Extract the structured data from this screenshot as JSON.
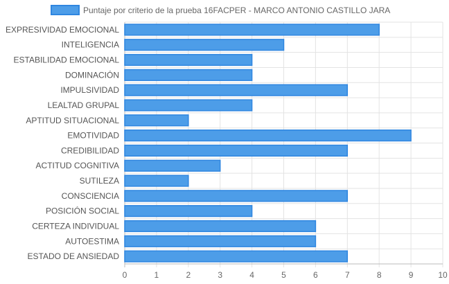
{
  "chart_data": {
    "type": "bar",
    "orientation": "horizontal",
    "legend_position": "top",
    "grid": true,
    "series": [
      {
        "name": "Puntaje por criterio de la prueba 16FACPER - MARCO ANTONIO CASTILLO JARA",
        "values": [
          8,
          5,
          4,
          4,
          7,
          4,
          2,
          9,
          7,
          3,
          2,
          7,
          4,
          6,
          6,
          7
        ]
      }
    ],
    "categories": [
      "EXPRESIVIDAD EMOCIONAL",
      "INTELIGENCIA",
      "ESTABILIDAD EMOCIONAL",
      "DOMINACIÓN",
      "IMPULSIVIDAD",
      "LEALTAD GRUPAL",
      "APTITUD SITUACIONAL",
      "EMOTIVIDAD",
      "CREDIBILIDAD",
      "ACTITUD COGNITIVA",
      "SUTILEZA",
      "CONSCIENCIA",
      "POSICIÓN SOCIAL",
      "CERTEZA INDIVIDUAL",
      "AUTOESTIMA",
      "ESTADO DE ANSIEDAD"
    ],
    "xlim": [
      0,
      10
    ],
    "xticks": [
      "0",
      "1",
      "2",
      "3",
      "4",
      "5",
      "6",
      "7",
      "8",
      "9",
      "10"
    ],
    "colors": {
      "bar_fill": "#4d9de8",
      "bar_border": "#2f86e0",
      "grid": "#e3e3e3",
      "axis": "#bbbbbb"
    }
  }
}
